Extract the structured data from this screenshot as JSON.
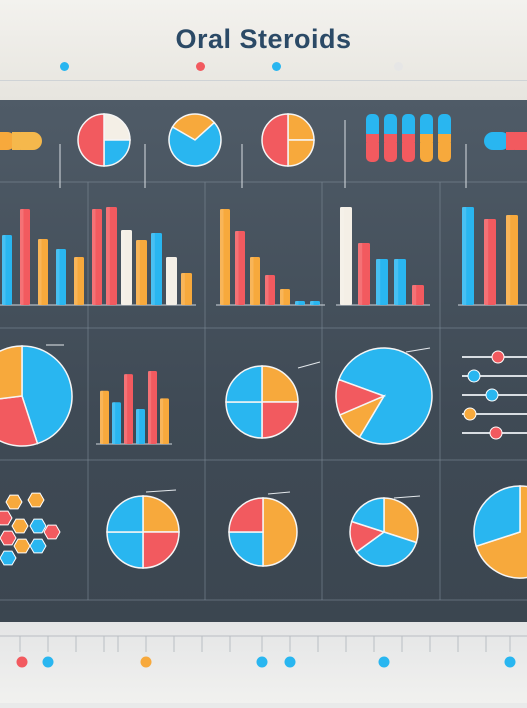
{
  "header": {
    "title": "Oral Steroids"
  },
  "colors": {
    "blue": "#29b6f0",
    "red": "#f25a5f",
    "orange": "#f7a93c",
    "cream": "#f4efe6",
    "grey": "#e6e6e6",
    "board": "#46525e"
  },
  "chart_data": [
    {
      "type": "bar",
      "series": [
        {
          "values": [
            70,
            96,
            66,
            56,
            48,
            96
          ]
        }
      ],
      "colors": [
        "#29b6f0",
        "#f25a5f",
        "#f7a93c",
        "#29b6f0",
        "#f7a93c",
        "#f25a5f"
      ],
      "grid": false
    },
    {
      "type": "bar",
      "series": [
        {
          "values": [
            98,
            75,
            65,
            72,
            48,
            32
          ]
        }
      ],
      "colors": [
        "#f25a5f",
        "#f4efe6",
        "#f7a93c",
        "#29b6f0",
        "#f4efe6",
        "#f7a93c"
      ],
      "grid": false
    },
    {
      "type": "bar",
      "series": [
        {
          "values": [
            96,
            74,
            48,
            30,
            16,
            4,
            4
          ]
        }
      ],
      "colors": [
        "#f7a93c",
        "#f25a5f",
        "#f7a93c",
        "#f25a5f",
        "#f7a93c",
        "#29b6f0",
        "#29b6f0"
      ],
      "grid": false
    },
    {
      "type": "bar",
      "series": [
        {
          "values": [
            98,
            62,
            46,
            46,
            20
          ]
        }
      ],
      "colors": [
        "#f4efe6",
        "#f25a5f",
        "#29b6f0",
        "#29b6f0",
        "#f25a5f"
      ],
      "grid": false
    },
    {
      "type": "bar",
      "series": [
        {
          "values": [
            98,
            86,
            90,
            72
          ]
        }
      ],
      "colors": [
        "#29b6f0",
        "#f25a5f",
        "#f7a93c",
        "#29b6f0"
      ],
      "grid": false
    },
    {
      "type": "pie",
      "values": [
        45,
        28,
        27
      ],
      "colors": [
        "#29b6f0",
        "#f25a5f",
        "#f7a93c"
      ]
    },
    {
      "type": "bar",
      "series": [
        {
          "values": [
            70,
            55,
            92,
            46,
            96,
            60
          ]
        }
      ],
      "colors": [
        "#f7a93c",
        "#29b6f0",
        "#f25a5f",
        "#29b6f0",
        "#f25a5f",
        "#f7a93c"
      ],
      "grid": false
    },
    {
      "type": "pie",
      "values": [
        25,
        25,
        25,
        25
      ],
      "colors": [
        "#f7a93c",
        "#f25a5f",
        "#29b6f0",
        "#29b6f0"
      ]
    },
    {
      "type": "pie",
      "values": [
        78,
        10,
        12
      ],
      "colors": [
        "#29b6f0",
        "#f7a93c",
        "#f25a5f"
      ]
    },
    {
      "type": "pie",
      "values": [
        25,
        25,
        25,
        25
      ],
      "colors": [
        "#f7a93c",
        "#f25a5f",
        "#29b6f0",
        "#29b6f0"
      ]
    },
    {
      "type": "pie",
      "values": [
        50,
        25,
        25
      ],
      "colors": [
        "#f7a93c",
        "#29b6f0",
        "#f25a5f"
      ]
    },
    {
      "type": "pie",
      "values": [
        30,
        35,
        15,
        20
      ],
      "colors": [
        "#f7a93c",
        "#29b6f0",
        "#f25a5f",
        "#29b6f0"
      ]
    },
    {
      "type": "pie",
      "values": [
        70,
        30
      ],
      "colors": [
        "#f7a93c",
        "#29b6f0"
      ]
    }
  ]
}
